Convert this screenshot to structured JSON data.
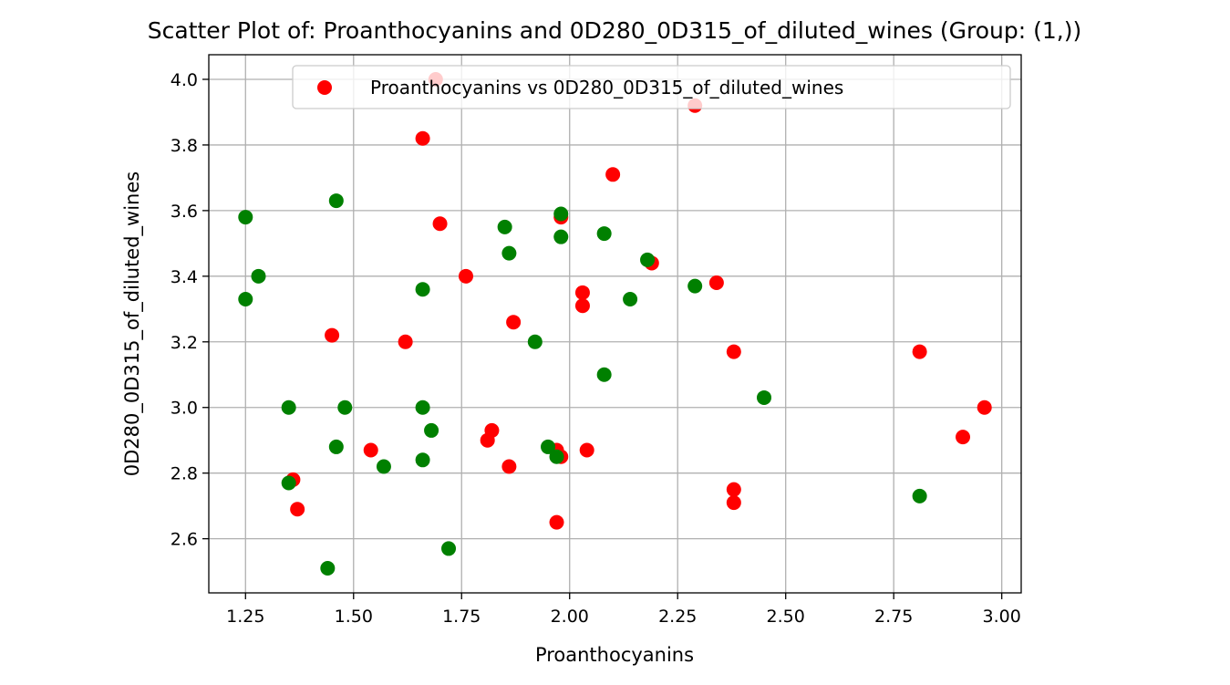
{
  "chart_data": {
    "type": "scatter",
    "title": "Scatter Plot of: Proanthocyanins and 0D280_0D315_of_diluted_wines (Group: (1,))",
    "xlabel": "Proanthocyanins",
    "ylabel": "0D280_0D315_of_diluted_wines",
    "xlim": [
      1.165,
      3.045
    ],
    "ylim": [
      2.435,
      4.075
    ],
    "xticks": [
      "1.25",
      "1.50",
      "1.75",
      "2.00",
      "2.25",
      "2.50",
      "2.75",
      "3.00"
    ],
    "yticks": [
      "2.6",
      "2.8",
      "3.0",
      "3.2",
      "3.4",
      "3.6",
      "3.8",
      "4.0"
    ],
    "grid": true,
    "legend": {
      "placement": "top-right",
      "entries": [
        "Proanthocyanins vs 0D280_0D315_of_diluted_wines"
      ]
    },
    "series": [
      {
        "name": "Proanthocyanins vs 0D280_0D315_of_diluted_wines",
        "color": "#ff0000",
        "points": [
          [
            1.69,
            4.0
          ],
          [
            2.29,
            3.92
          ],
          [
            1.66,
            3.82
          ],
          [
            2.1,
            3.71
          ],
          [
            1.7,
            3.56
          ],
          [
            1.98,
            3.58
          ],
          [
            2.19,
            3.44
          ],
          [
            1.76,
            3.4
          ],
          [
            2.34,
            3.38
          ],
          [
            2.03,
            3.35
          ],
          [
            2.03,
            3.31
          ],
          [
            1.87,
            3.26
          ],
          [
            1.45,
            3.22
          ],
          [
            1.62,
            3.2
          ],
          [
            2.38,
            3.17
          ],
          [
            2.81,
            3.17
          ],
          [
            2.96,
            3.0
          ],
          [
            2.91,
            2.91
          ],
          [
            1.82,
            2.93
          ],
          [
            1.81,
            2.9
          ],
          [
            1.54,
            2.87
          ],
          [
            1.97,
            2.87
          ],
          [
            2.04,
            2.87
          ],
          [
            1.98,
            2.85
          ],
          [
            1.86,
            2.82
          ],
          [
            1.36,
            2.78
          ],
          [
            2.38,
            2.75
          ],
          [
            2.38,
            2.71
          ],
          [
            1.37,
            2.69
          ],
          [
            1.97,
            2.65
          ]
        ]
      },
      {
        "name": "",
        "color": "#008000",
        "points": [
          [
            1.25,
            3.58
          ],
          [
            1.46,
            3.63
          ],
          [
            1.98,
            3.59
          ],
          [
            1.85,
            3.55
          ],
          [
            2.08,
            3.53
          ],
          [
            1.98,
            3.52
          ],
          [
            1.86,
            3.47
          ],
          [
            2.18,
            3.45
          ],
          [
            1.28,
            3.4
          ],
          [
            2.29,
            3.37
          ],
          [
            1.66,
            3.36
          ],
          [
            2.14,
            3.33
          ],
          [
            1.25,
            3.33
          ],
          [
            1.92,
            3.2
          ],
          [
            2.08,
            3.1
          ],
          [
            2.45,
            3.03
          ],
          [
            1.35,
            3.0
          ],
          [
            1.48,
            3.0
          ],
          [
            1.66,
            3.0
          ],
          [
            1.68,
            2.93
          ],
          [
            1.46,
            2.88
          ],
          [
            1.95,
            2.88
          ],
          [
            1.97,
            2.85
          ],
          [
            1.66,
            2.84
          ],
          [
            1.57,
            2.82
          ],
          [
            1.35,
            2.77
          ],
          [
            2.81,
            2.73
          ],
          [
            1.72,
            2.57
          ],
          [
            1.44,
            2.51
          ]
        ]
      }
    ]
  }
}
